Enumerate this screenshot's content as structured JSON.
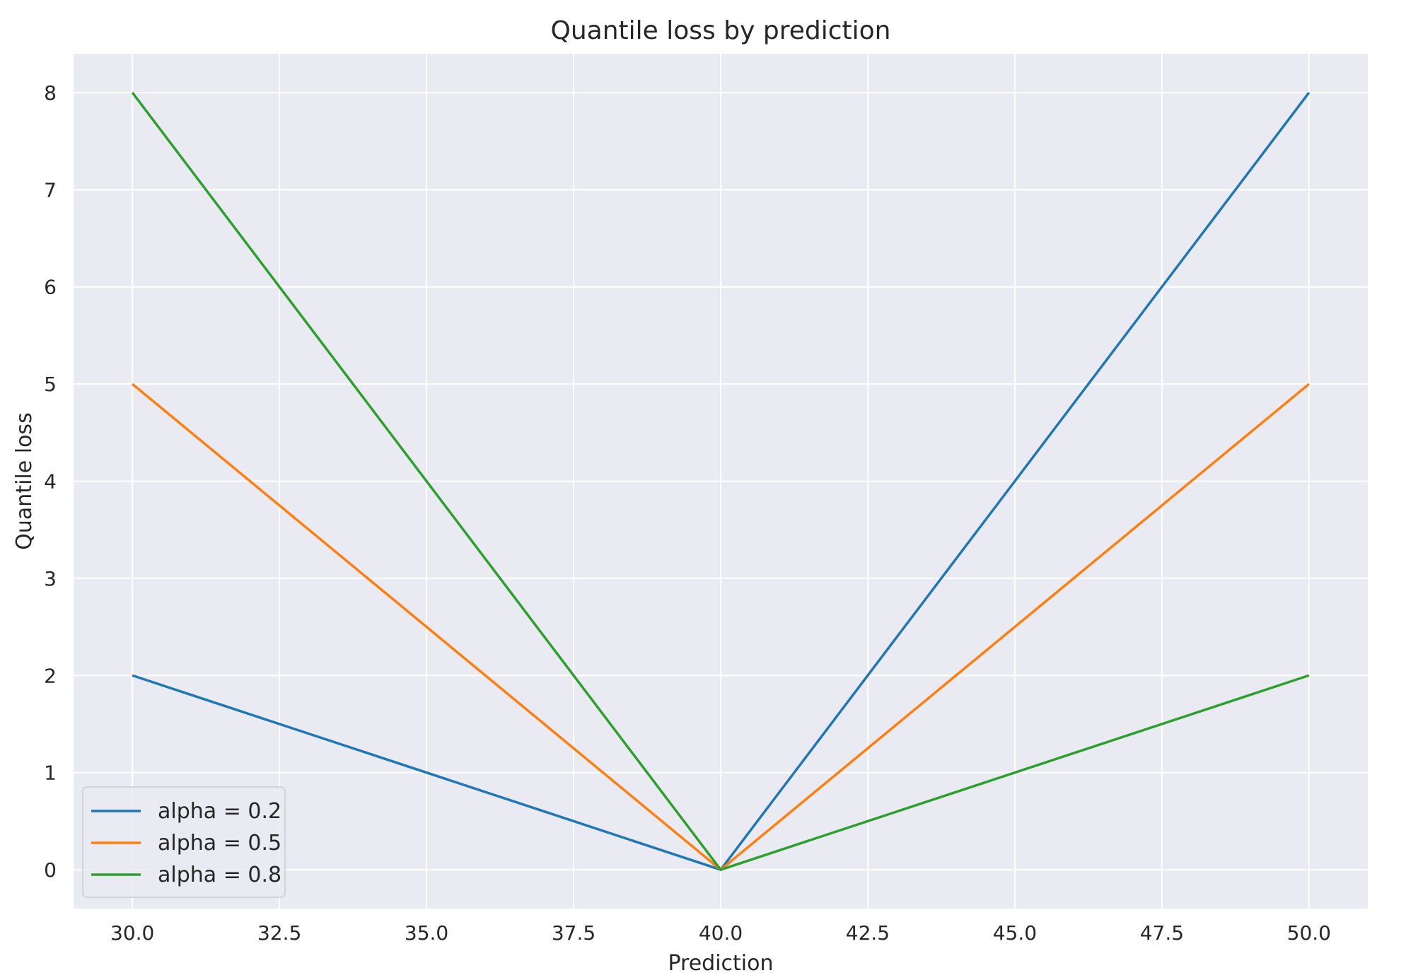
{
  "chart_data": {
    "type": "line",
    "title": "Quantile loss by prediction",
    "xlabel": "Prediction",
    "ylabel": "Quantile loss",
    "x": [
      30,
      40,
      50
    ],
    "series": [
      {
        "name": "alpha = 0.2",
        "values": [
          2,
          0,
          8
        ],
        "color": "#1f77b4"
      },
      {
        "name": "alpha = 0.5",
        "values": [
          5,
          0,
          5
        ],
        "color": "#ff7f0e"
      },
      {
        "name": "alpha = 0.8",
        "values": [
          8,
          0,
          2
        ],
        "color": "#2ca02c"
      }
    ],
    "xlim": [
      29.0,
      51.0
    ],
    "ylim": [
      -0.4,
      8.4
    ],
    "xticks": [
      30.0,
      32.5,
      35.0,
      37.5,
      40.0,
      42.5,
      45.0,
      47.5,
      50.0
    ],
    "xtick_labels": [
      "30.0",
      "32.5",
      "35.0",
      "37.5",
      "40.0",
      "42.5",
      "45.0",
      "47.5",
      "50.0"
    ],
    "yticks": [
      0,
      1,
      2,
      3,
      4,
      5,
      6,
      7,
      8
    ],
    "ytick_labels": [
      "0",
      "1",
      "2",
      "3",
      "4",
      "5",
      "6",
      "7",
      "8"
    ],
    "grid": true,
    "background_color": "#eaeaf2",
    "grid_color": "#ffffff",
    "legend_position": "lower-left"
  }
}
